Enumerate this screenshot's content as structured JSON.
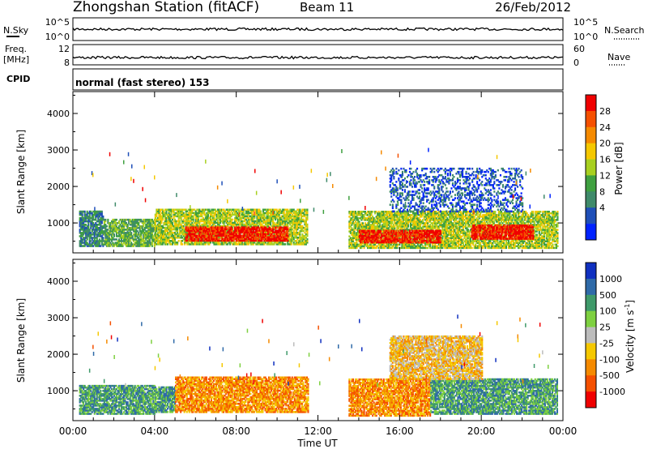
{
  "header": {
    "title": "Zhongshan Station (fitACF)",
    "beam": "Beam 11",
    "date": "26/Feb/2012"
  },
  "strip_panels": {
    "nsky": {
      "label": "N.Sky",
      "ticks": [
        "10^5",
        "10^0"
      ]
    },
    "nsearch": {
      "label": "N.Search",
      "ticks": [
        "10^5",
        "10^0"
      ]
    },
    "freq": {
      "label_line1": "Freq.",
      "label_line2": "[MHz]",
      "ticks": [
        "12",
        "8"
      ]
    },
    "nave": {
      "label": "Nave",
      "ticks": [
        "60",
        "0"
      ]
    },
    "cpid": {
      "label": "CPID",
      "value": "normal (fast stereo) 153"
    }
  },
  "colors": {
    "power_scale": [
      "#0022ff",
      "#1f4fb8",
      "#3f8a6a",
      "#3fa040",
      "#a8d020",
      "#f5c800",
      "#f58a00",
      "#f55000",
      "#f00000"
    ],
    "velocity_scale": [
      "#f00000",
      "#f55000",
      "#f58a00",
      "#f5c800",
      "#bcbcbc",
      "#7ed040",
      "#3f9a6a",
      "#2f6aa8",
      "#1030c0"
    ]
  },
  "chart_data": [
    {
      "type": "heatmap",
      "title": "",
      "xlabel": "Time UT",
      "ylabel": "Slant Range [km]",
      "x_ticks": [
        "00:00",
        "04:00",
        "08:00",
        "12:00",
        "16:00",
        "20:00",
        "00:00"
      ],
      "xlim_hours": [
        0,
        24
      ],
      "y_ticks": [
        1000,
        2000,
        3000,
        4000
      ],
      "ylim": [
        180,
        4600
      ],
      "colorbar": {
        "label": "Power [dB]",
        "ticks": [
          "4",
          "8",
          "12",
          "16",
          "20",
          "24",
          "28"
        ],
        "range": [
          0,
          30
        ]
      },
      "echo_regions": [
        {
          "t_start": 0.3,
          "t_end": 1.5,
          "r_min": 350,
          "r_max": 1300,
          "level": 2
        },
        {
          "t_start": 1.5,
          "t_end": 4.0,
          "r_min": 350,
          "r_max": 1100,
          "level": 3
        },
        {
          "t_start": 4.0,
          "t_end": 11.5,
          "r_min": 400,
          "r_max": 1350,
          "level": 4
        },
        {
          "t_start": 5.5,
          "t_end": 10.5,
          "r_min": 500,
          "r_max": 900,
          "level": 8
        },
        {
          "t_start": 13.5,
          "t_end": 23.7,
          "r_min": 300,
          "r_max": 1300,
          "level": 4
        },
        {
          "t_start": 14.0,
          "t_end": 18.0,
          "r_min": 450,
          "r_max": 800,
          "level": 8
        },
        {
          "t_start": 19.5,
          "t_end": 22.5,
          "r_min": 550,
          "r_max": 950,
          "level": 8
        },
        {
          "t_start": 15.5,
          "t_end": 22.0,
          "r_min": 1300,
          "r_max": 2500,
          "level": 1
        }
      ]
    },
    {
      "type": "heatmap",
      "title": "",
      "xlabel": "Time UT",
      "ylabel": "Slant Range [km]",
      "x_ticks": [
        "00:00",
        "04:00",
        "08:00",
        "12:00",
        "16:00",
        "20:00",
        "00:00"
      ],
      "xlim_hours": [
        0,
        24
      ],
      "y_ticks": [
        1000,
        2000,
        3000,
        4000
      ],
      "ylim": [
        180,
        4600
      ],
      "colorbar": {
        "label": "Velocity [m s",
        "label_exponent": "-1",
        "label_close": "]",
        "ticks": [
          "1000",
          "500",
          "100",
          "25",
          "-25",
          "-100",
          "-500",
          "-1000"
        ],
        "range": [
          -1000,
          1000
        ]
      },
      "echo_regions": [
        {
          "t_start": 0.3,
          "t_end": 4.0,
          "r_min": 350,
          "r_max": 1150,
          "level": 6
        },
        {
          "t_start": 4.0,
          "t_end": 5.0,
          "r_min": 400,
          "r_max": 1100,
          "level": 6
        },
        {
          "t_start": 5.0,
          "t_end": 11.5,
          "r_min": 400,
          "r_max": 1350,
          "level": 2
        },
        {
          "t_start": 13.5,
          "t_end": 17.5,
          "r_min": 300,
          "r_max": 1300,
          "level": 2
        },
        {
          "t_start": 17.5,
          "t_end": 23.7,
          "r_min": 350,
          "r_max": 1300,
          "level": 6
        },
        {
          "t_start": 15.5,
          "t_end": 20.0,
          "r_min": 1300,
          "r_max": 2500,
          "level": 3
        }
      ]
    }
  ]
}
